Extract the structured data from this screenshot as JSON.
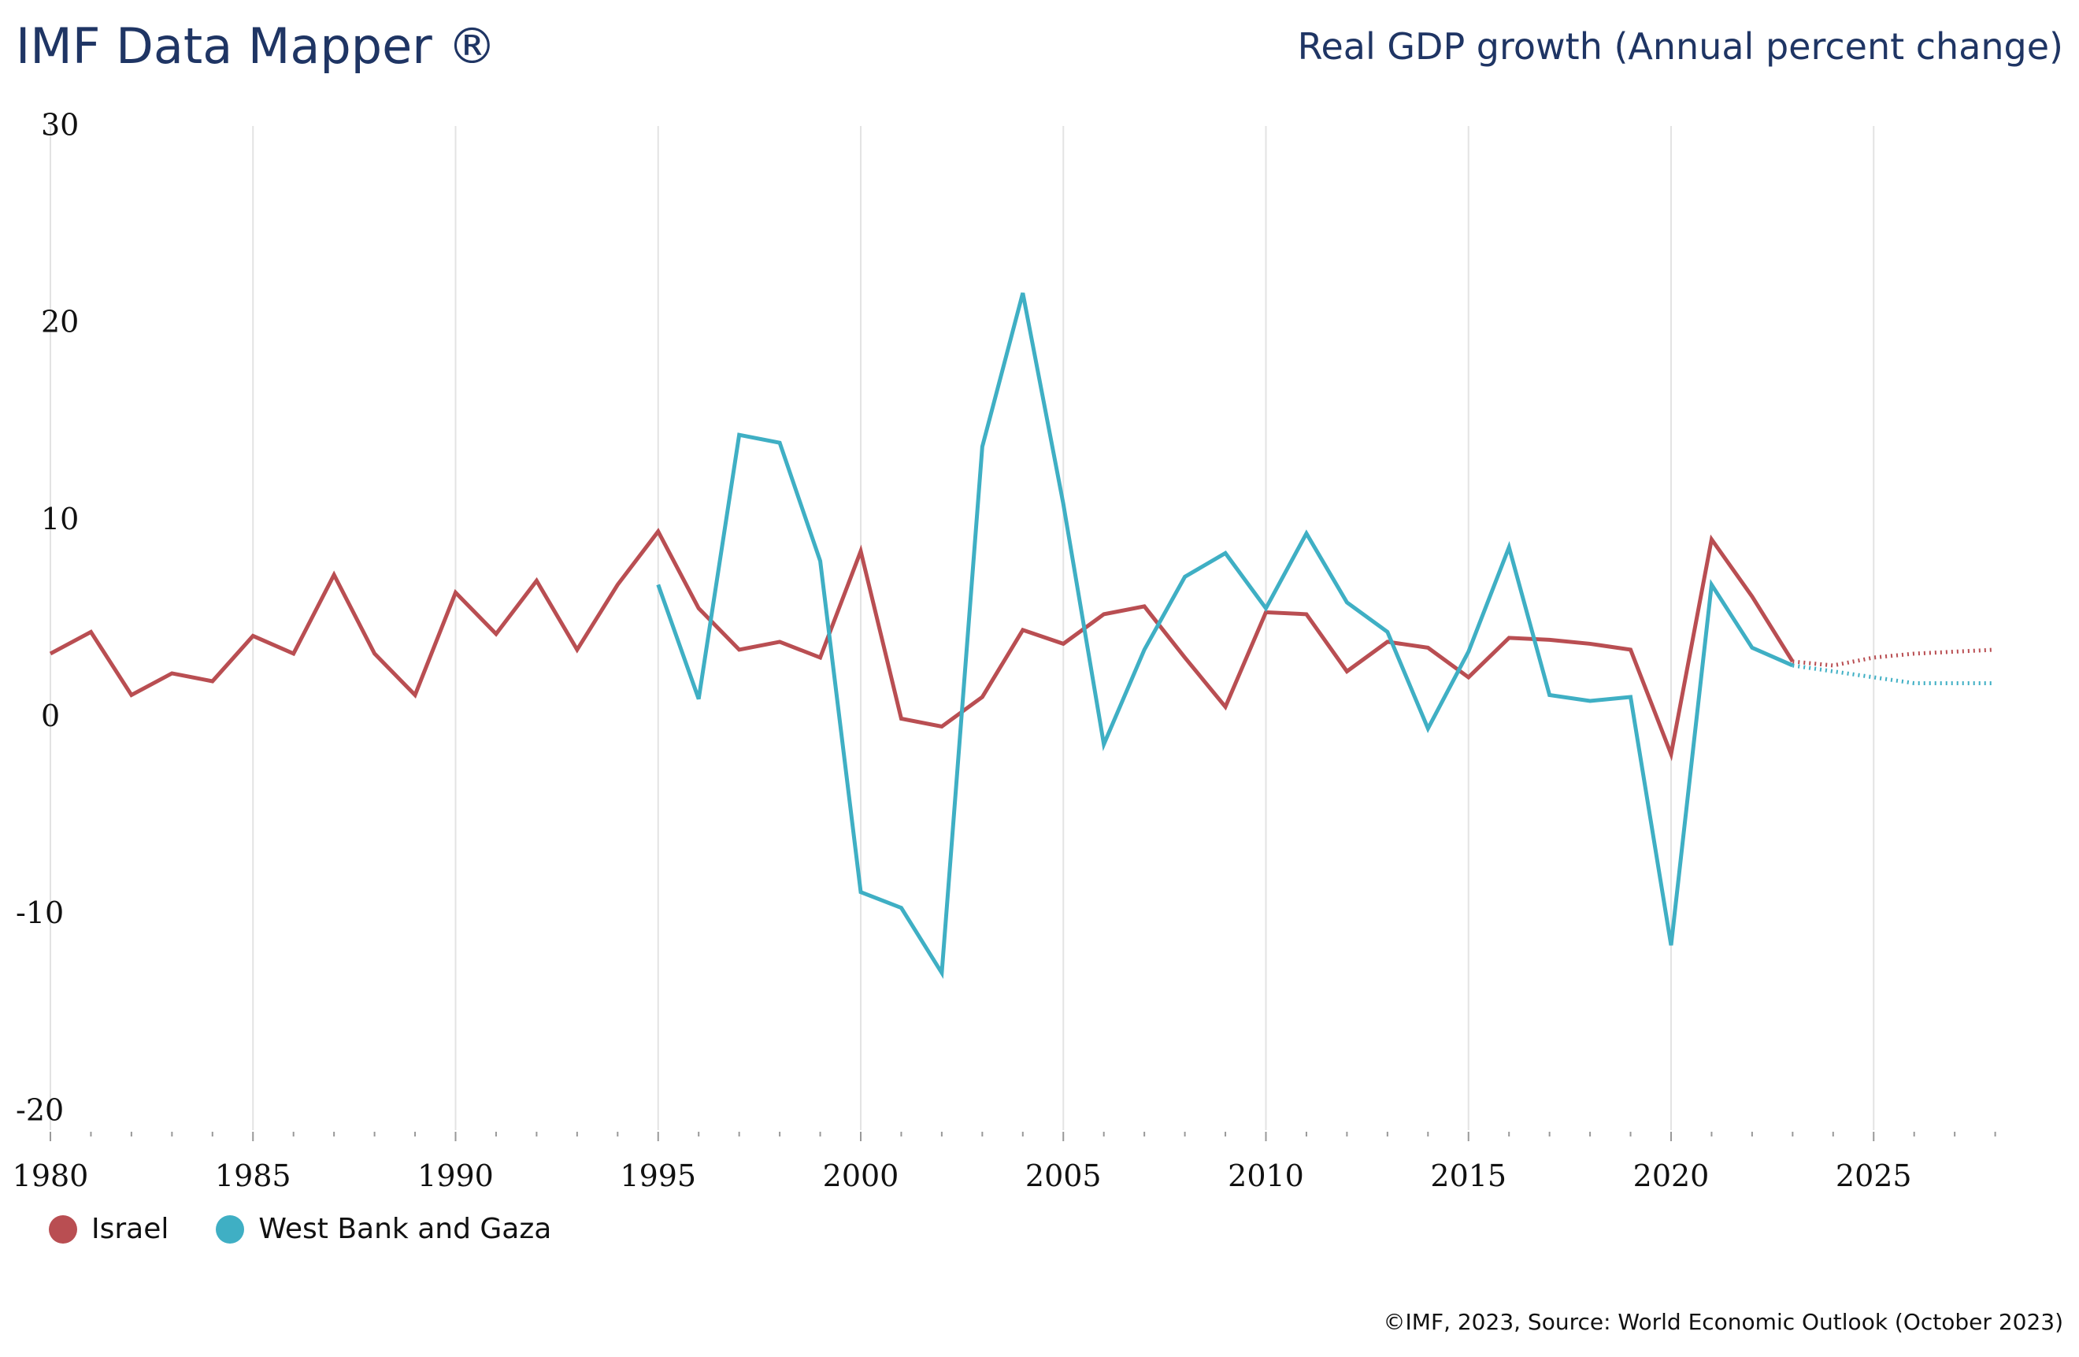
{
  "header": {
    "title": "IMF Data Mapper ®",
    "subtitle": "Real GDP growth (Annual percent change)"
  },
  "footer": {
    "source": "©IMF, 2023, Source: World Economic Outlook (October 2023)"
  },
  "chart_data": {
    "type": "line",
    "title": "Real GDP growth (Annual percent change)",
    "xlim": [
      1980,
      2028
    ],
    "ylim": [
      -20,
      30
    ],
    "x_ticks": [
      "1980",
      "1985",
      "1990",
      "1995",
      "2000",
      "2005",
      "2010",
      "2015",
      "2020",
      "2025"
    ],
    "y_ticks": [
      "30",
      "20",
      "10",
      "0",
      "-10",
      "-20"
    ],
    "grid": "vertical lines every 5 years",
    "legend_placement": "bottom-left",
    "projection_start": 2023,
    "projection_style": "dotted",
    "series": [
      {
        "name": "Israel",
        "color": "#b94e52",
        "x": [
          1980,
          1981,
          1982,
          1983,
          1984,
          1985,
          1986,
          1987,
          1988,
          1989,
          1990,
          1991,
          1992,
          1993,
          1994,
          1995,
          1996,
          1997,
          1998,
          1999,
          2000,
          2001,
          2002,
          2003,
          2004,
          2005,
          2006,
          2007,
          2008,
          2009,
          2010,
          2011,
          2012,
          2013,
          2014,
          2015,
          2016,
          2017,
          2018,
          2019,
          2020,
          2021,
          2022,
          2023,
          2024,
          2025,
          2026,
          2027,
          2028
        ],
        "values": [
          3.2,
          4.3,
          1.1,
          2.2,
          1.8,
          4.1,
          3.2,
          7.2,
          3.2,
          1.1,
          6.3,
          4.2,
          6.9,
          3.4,
          6.7,
          9.4,
          5.5,
          3.4,
          3.8,
          3.0,
          8.4,
          -0.1,
          -0.5,
          1.0,
          4.4,
          3.7,
          5.2,
          5.6,
          3.0,
          0.5,
          5.3,
          5.2,
          2.3,
          3.8,
          3.5,
          2.0,
          4.0,
          3.9,
          3.7,
          3.4,
          -1.9,
          9.0,
          6.1,
          2.8,
          2.6,
          3.0,
          3.2,
          3.3,
          3.4
        ]
      },
      {
        "name": "West Bank and Gaza",
        "color": "#3fafc4",
        "x": [
          1995,
          1996,
          1997,
          1998,
          1999,
          2000,
          2001,
          2002,
          2003,
          2004,
          2005,
          2006,
          2007,
          2008,
          2009,
          2010,
          2011,
          2012,
          2013,
          2014,
          2015,
          2016,
          2017,
          2018,
          2019,
          2020,
          2021,
          2022,
          2023,
          2024,
          2025,
          2026,
          2027,
          2028
        ],
        "values": [
          6.7,
          0.9,
          14.3,
          13.9,
          7.9,
          -8.9,
          -9.7,
          -13.0,
          13.7,
          21.5,
          10.8,
          -1.4,
          3.4,
          7.1,
          8.3,
          5.5,
          9.3,
          5.8,
          4.3,
          -0.6,
          3.3,
          8.6,
          1.1,
          0.8,
          1.0,
          -11.6,
          6.7,
          3.5,
          2.6,
          2.3,
          2.0,
          1.7,
          1.7,
          1.7
        ]
      }
    ]
  }
}
